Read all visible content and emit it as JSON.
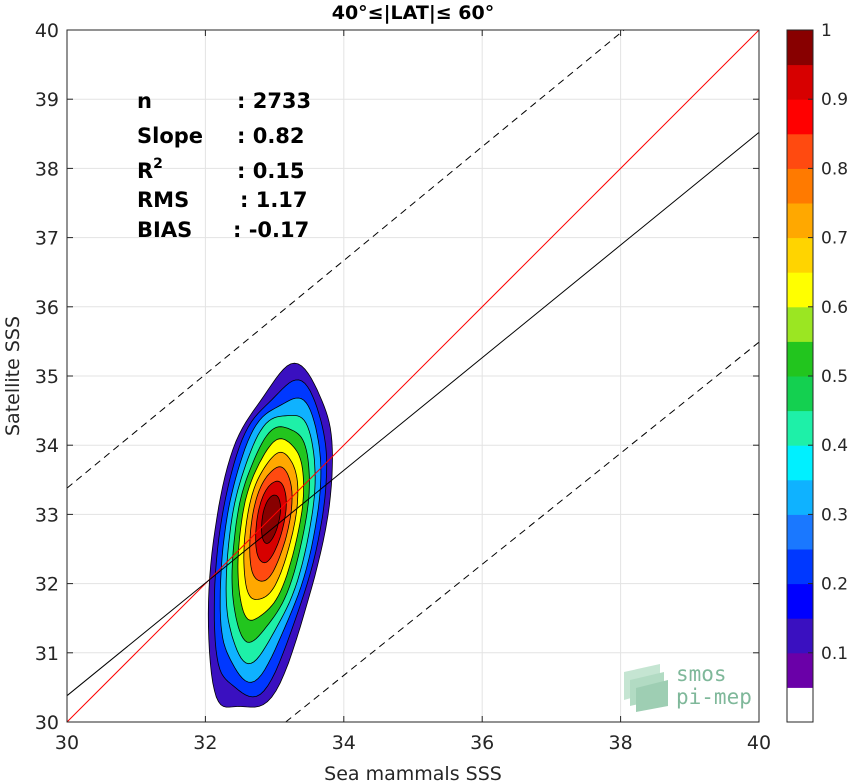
{
  "chart_data": {
    "type": "contour",
    "title": "40°≤|LAT|≤ 60°",
    "xlabel": "Sea mammals SSS",
    "ylabel": "Satellite SSS",
    "xlim": [
      30,
      40
    ],
    "ylim": [
      30,
      40
    ],
    "xticks": [
      "30",
      "32",
      "34",
      "36",
      "38",
      "40"
    ],
    "yticks": [
      "30",
      "31",
      "32",
      "33",
      "34",
      "35",
      "36",
      "37",
      "38",
      "39",
      "40"
    ],
    "grid": true,
    "stats": [
      {
        "label": "n",
        "value": ": 2733"
      },
      {
        "label": "Slope",
        "value": ": 0.82"
      },
      {
        "label": "R",
        "sup": "2",
        "value": ": 0.15"
      },
      {
        "label": "RMS",
        "value": ": 1.17"
      },
      {
        "label": "BIAS",
        "value": ": -0.17"
      }
    ],
    "lines": [
      {
        "kind": "identity",
        "color": "#ff0000",
        "x": [
          30,
          40
        ],
        "y": [
          30,
          40
        ]
      },
      {
        "kind": "regression",
        "color": "#000000",
        "x": [
          30,
          40
        ],
        "y": [
          30.38,
          38.52
        ]
      },
      {
        "kind": "upper-bound",
        "color": "#000000",
        "dash": true,
        "x": [
          30,
          38.05
        ],
        "y": [
          33.38,
          40
        ]
      },
      {
        "kind": "lower-bound",
        "color": "#000000",
        "dash": true,
        "x": [
          33.16,
          40
        ],
        "y": [
          30,
          35.49
        ]
      }
    ],
    "density_center": [
      32.95,
      32.98
    ],
    "contour_levels": [
      0.05,
      0.15,
      0.25,
      0.35,
      0.45,
      0.55,
      0.65,
      0.75,
      0.85,
      0.95
    ],
    "colorbar": {
      "ticks": [
        "0.1",
        "0.2",
        "0.3",
        "0.4",
        "0.5",
        "0.6",
        "0.7",
        "0.8",
        "0.9",
        "1"
      ],
      "colors": [
        "#ffffff",
        "#6a00a8",
        "#3a10c0",
        "#0000ff",
        "#0038ff",
        "#1a78ff",
        "#0fb2ff",
        "#00f0ff",
        "#1ef0a8",
        "#14d050",
        "#22c51e",
        "#9be622",
        "#ffff00",
        "#ffd400",
        "#ffa800",
        "#ff7a00",
        "#ff4a10",
        "#ff0000",
        "#d70000",
        "#880000"
      ]
    }
  },
  "logo": {
    "line1": "smos",
    "line2": "pi-mep"
  }
}
